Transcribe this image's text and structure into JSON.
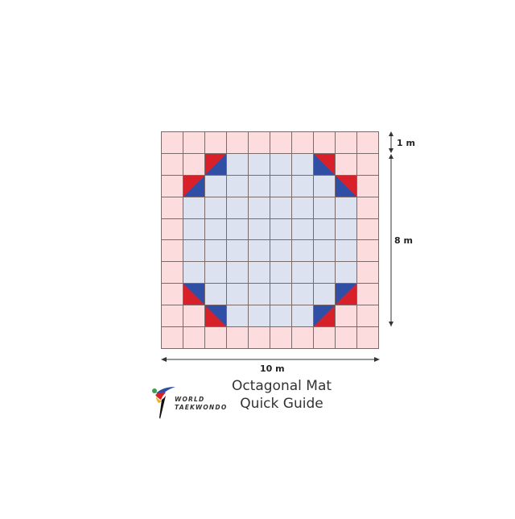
{
  "diagram": {
    "title_line1": "Octagonal Mat",
    "title_line2": "Quick Guide",
    "logo": {
      "line1": "WORLD",
      "line2": "TAEKWONDO",
      "icon": "world-taekwondo-logo-icon"
    },
    "dimensions": {
      "width_label": "10 m",
      "outer_band_label": "1 m",
      "inner_label": "8 m"
    },
    "grid": {
      "rows": 10,
      "cols": 10,
      "colors": {
        "safety_area": "#fcdcdc",
        "competition_area": "#dde2f0",
        "grid_line": "#7a6a6a",
        "red": "#d8202a",
        "blue": "#2f4fa6"
      },
      "corner_triangles": [
        {
          "row": 1,
          "col": 2,
          "type": "tl"
        },
        {
          "row": 2,
          "col": 1,
          "type": "tl"
        },
        {
          "row": 1,
          "col": 7,
          "type": "tr"
        },
        {
          "row": 2,
          "col": 8,
          "type": "tr"
        },
        {
          "row": 7,
          "col": 1,
          "type": "bl"
        },
        {
          "row": 8,
          "col": 2,
          "type": "bl"
        },
        {
          "row": 7,
          "col": 8,
          "type": "br"
        },
        {
          "row": 8,
          "col": 7,
          "type": "br"
        }
      ],
      "pink_interior_cells": [
        [
          1,
          1
        ],
        [
          1,
          8
        ],
        [
          8,
          1
        ],
        [
          8,
          8
        ]
      ]
    }
  }
}
